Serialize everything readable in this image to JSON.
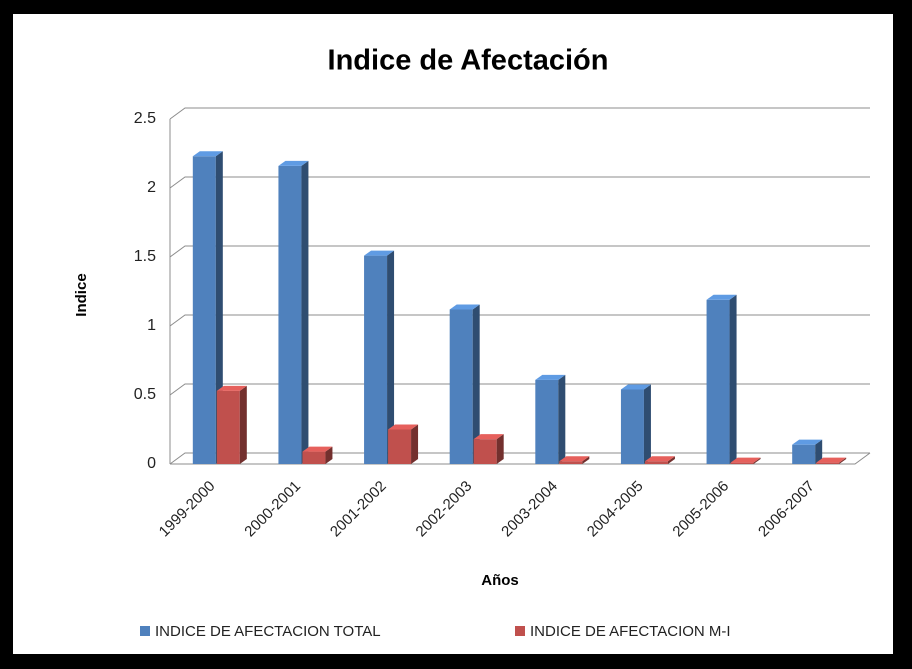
{
  "chart_data": {
    "type": "bar3d",
    "title": "Indice de Afectación",
    "x_label": "Años",
    "y_label": "Indice",
    "categories": [
      "1999-2000",
      "2000-2001",
      "2001-2002",
      "2002-2003",
      "2003-2004",
      "2004-2005",
      "2005-2006",
      "2006-2007"
    ],
    "series": [
      {
        "name": "INDICE DE AFECTACION TOTAL",
        "color": "#4f81bd",
        "values": [
          2.23,
          2.16,
          1.51,
          1.12,
          0.61,
          0.54,
          1.19,
          0.14
        ]
      },
      {
        "name": "INDICE DE AFECTACION M-I",
        "color": "#c0504d",
        "values": [
          0.53,
          0.09,
          0.25,
          0.18,
          0.02,
          0.02,
          0.01,
          0.01
        ]
      }
    ],
    "ylim": [
      0,
      2.5
    ],
    "yticks": [
      0,
      0.5,
      1,
      1.5,
      2,
      2.5
    ],
    "grid": true,
    "legend": "bottom"
  }
}
